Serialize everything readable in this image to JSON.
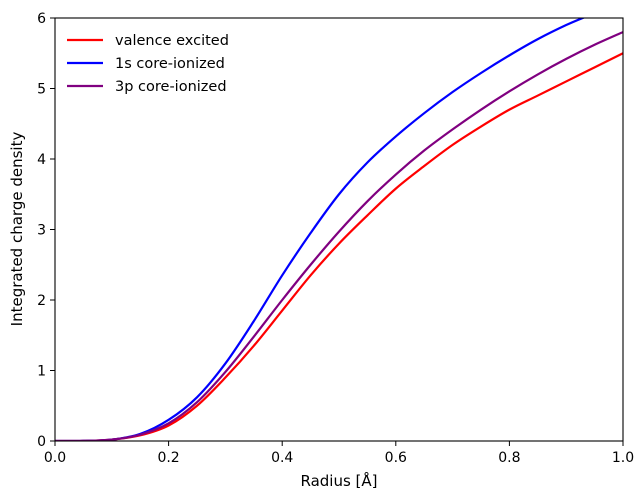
{
  "chart_data": {
    "type": "line",
    "xlabel": "Radius [Å]",
    "ylabel": "Integrated charge density",
    "xlim": [
      0.0,
      1.0
    ],
    "ylim": [
      0,
      6
    ],
    "xticks": [
      "0.0",
      "0.2",
      "0.4",
      "0.6",
      "0.8",
      "1.0"
    ],
    "yticks": [
      "0",
      "1",
      "2",
      "3",
      "4",
      "5",
      "6"
    ],
    "grid": false,
    "legend_position": "top-left",
    "series": [
      {
        "name": "valence excited",
        "color": "#ff0000",
        "x": [
          0.0,
          0.05,
          0.1,
          0.15,
          0.2,
          0.25,
          0.3,
          0.35,
          0.4,
          0.45,
          0.5,
          0.55,
          0.6,
          0.65,
          0.7,
          0.75,
          0.8,
          0.85,
          0.9,
          0.95,
          1.0
        ],
        "y": [
          0.0,
          0.002,
          0.02,
          0.08,
          0.22,
          0.5,
          0.9,
          1.35,
          1.85,
          2.35,
          2.8,
          3.2,
          3.58,
          3.9,
          4.2,
          4.46,
          4.7,
          4.9,
          5.1,
          5.3,
          5.5
        ]
      },
      {
        "name": "1s core-ionized",
        "color": "#0000ff",
        "x": [
          0.0,
          0.05,
          0.1,
          0.15,
          0.2,
          0.25,
          0.3,
          0.35,
          0.4,
          0.45,
          0.5,
          0.55,
          0.6,
          0.65,
          0.7,
          0.75,
          0.8,
          0.85,
          0.9,
          0.935
        ],
        "y": [
          0.0,
          0.002,
          0.02,
          0.1,
          0.3,
          0.62,
          1.1,
          1.7,
          2.35,
          2.95,
          3.5,
          3.95,
          4.32,
          4.65,
          4.95,
          5.22,
          5.47,
          5.7,
          5.9,
          6.02
        ]
      },
      {
        "name": "3p core-ionized",
        "color": "#800080",
        "x": [
          0.0,
          0.05,
          0.1,
          0.15,
          0.2,
          0.25,
          0.3,
          0.35,
          0.4,
          0.45,
          0.5,
          0.55,
          0.6,
          0.65,
          0.7,
          0.75,
          0.8,
          0.85,
          0.9,
          0.95,
          1.0
        ],
        "y": [
          0.0,
          0.002,
          0.02,
          0.09,
          0.25,
          0.55,
          0.98,
          1.48,
          2.0,
          2.5,
          2.97,
          3.4,
          3.78,
          4.12,
          4.42,
          4.7,
          4.96,
          5.2,
          5.42,
          5.62,
          5.8
        ]
      }
    ]
  }
}
